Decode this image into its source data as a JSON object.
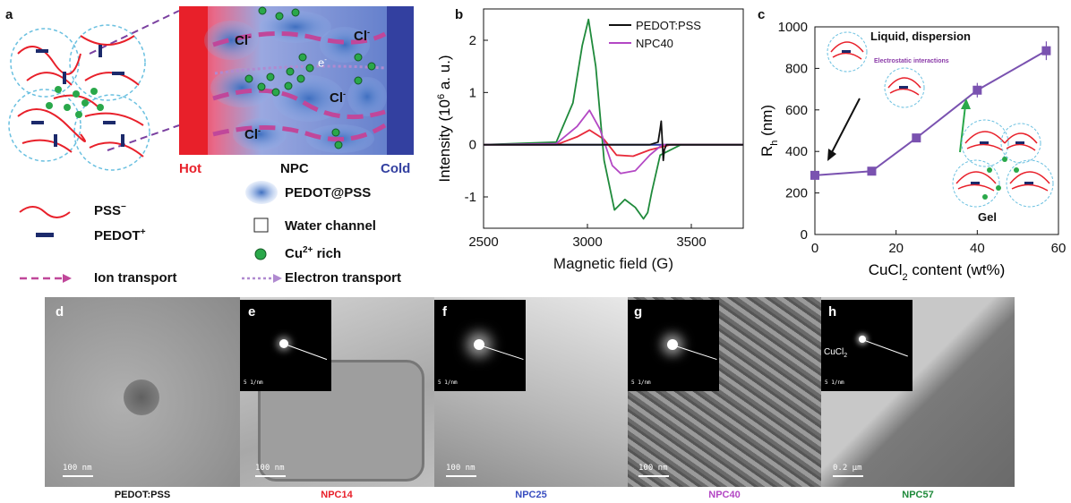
{
  "panel_labels": {
    "a": "a",
    "b": "b",
    "c": "c",
    "d": "d",
    "e": "e",
    "f": "f",
    "g": "g",
    "h": "h"
  },
  "panel_a": {
    "hot": "Hot",
    "npc": "NPC",
    "cold": "Cold",
    "cl": "Cl",
    "cl_sup": "-",
    "e_minus": "e",
    "legend": {
      "pss": "PSS",
      "pss_sup": "−",
      "pedot": "PEDOT",
      "pedot_sup": "+",
      "ion": "Ion transport",
      "pedot_pss": "PEDOT@PSS",
      "water": "Water channel",
      "cu": "Cu",
      "cu_sup": "2+",
      "cu_rest": " rich",
      "electron": "Electron transport"
    },
    "colors": {
      "hot": "#e8202a",
      "cold": "#3340a0",
      "pss": "#e8202a",
      "pedot": "#1c2a6b",
      "cu": "#2aa84a",
      "ion": "#c0479a",
      "electron": "#b08ad0"
    }
  },
  "chart_data": [
    {
      "type": "line",
      "panel": "b",
      "xlabel": "Magnetic field (G)",
      "ylabel": "Intensity (10",
      "ylabel_sup": "6",
      "ylabel_tail": " a. u.)",
      "xlim": [
        2500,
        3750
      ],
      "ylim": [
        -1.6,
        2.6
      ],
      "xticks": [
        "2500",
        "3000",
        "3500"
      ],
      "yticks": [
        "-1",
        "0",
        "1",
        "2"
      ],
      "legend": [
        "PEDOT:PSS",
        "NPC40"
      ],
      "series": [
        {
          "name": "PEDOT:PSS",
          "color": "#111111",
          "x": [
            2500,
            3300,
            3340,
            3350,
            3355,
            3360,
            3365,
            3370,
            3380,
            3750
          ],
          "y": [
            0,
            0,
            0.05,
            0.3,
            0.45,
            0.1,
            -0.3,
            -0.1,
            0,
            0
          ]
        },
        {
          "name": "NPC40",
          "color": "#b347c4",
          "x": [
            2500,
            2850,
            2950,
            3010,
            3060,
            3120,
            3160,
            3230,
            3300,
            3360,
            3450,
            3750
          ],
          "y": [
            0,
            0.02,
            0.35,
            0.66,
            0.3,
            -0.4,
            -0.55,
            -0.5,
            -0.2,
            0,
            0,
            0
          ]
        },
        {
          "color": "#1f8a3b",
          "x": [
            2500,
            2850,
            2930,
            2975,
            3005,
            3040,
            3080,
            3130,
            3180,
            3230,
            3270,
            3290,
            3310,
            3350,
            3450,
            3750
          ],
          "y": [
            0,
            0.05,
            0.8,
            1.9,
            2.4,
            1.5,
            -0.3,
            -1.25,
            -1.05,
            -1.2,
            -1.42,
            -1.3,
            -0.9,
            -0.2,
            0,
            0
          ]
        },
        {
          "color": "#e82a3a",
          "x": [
            2500,
            2850,
            2950,
            3010,
            3080,
            3140,
            3220,
            3300,
            3400,
            3750
          ],
          "y": [
            0,
            0,
            0.15,
            0.28,
            0.1,
            -0.2,
            -0.22,
            -0.1,
            0,
            0
          ]
        },
        {
          "color": "#2a3aa0",
          "x": [
            2500,
            3750
          ],
          "y": [
            0,
            0
          ]
        }
      ]
    },
    {
      "type": "line",
      "panel": "c",
      "xlabel": "CuCl",
      "xlabel_sub": "2",
      "xlabel_tail": " content (wt%)",
      "ylabel": "R",
      "ylabel_sub": "h",
      "ylabel_tail": " (nm)",
      "xlim": [
        0,
        60
      ],
      "ylim": [
        0,
        1000
      ],
      "xticks": [
        "0",
        "20",
        "40",
        "60"
      ],
      "yticks": [
        "0",
        "200",
        "400",
        "600",
        "800",
        "1000"
      ],
      "series": [
        {
          "color": "#7a52b0",
          "x": [
            0,
            14,
            25,
            40,
            57
          ],
          "y": [
            285,
            305,
            465,
            695,
            885
          ],
          "err": [
            15,
            12,
            20,
            35,
            45
          ]
        }
      ],
      "annotations": {
        "liquid": "Liquid, dispersion",
        "electrostatic": "Electrostatic interactions",
        "gel": "Gel"
      }
    }
  ],
  "tem": {
    "scale_100nm": "100 nm",
    "scale_diff": "5 1/nm",
    "scale_h": "0.2 μm",
    "cucl2": "CuCl",
    "cucl2_sub": "2",
    "captions": [
      {
        "text": "PEDOT:PSS",
        "color": "#111111"
      },
      {
        "text": "NPC14",
        "color": "#e8202a"
      },
      {
        "text": "NPC25",
        "color": "#3a4fc0"
      },
      {
        "text": "NPC40",
        "color": "#b347c4"
      },
      {
        "text": "NPC57",
        "color": "#1f8a3b"
      }
    ]
  }
}
